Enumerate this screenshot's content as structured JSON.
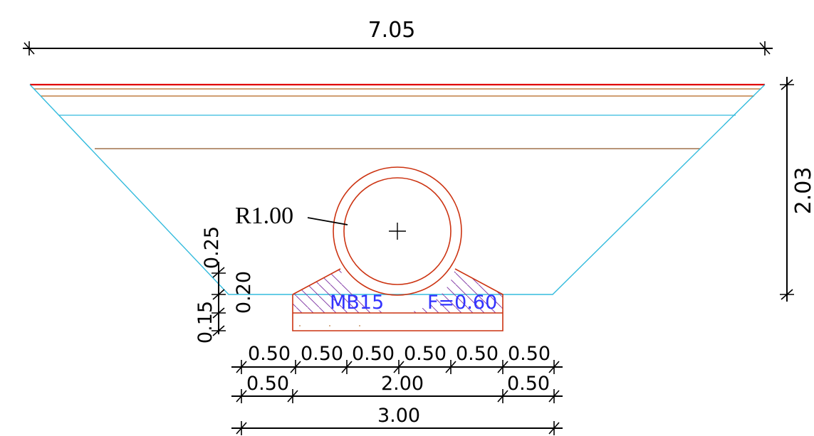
{
  "dimensions": {
    "top_width": "7.05",
    "total_height": "2.03",
    "radius": "R1.00",
    "left_025": "0.25",
    "left_020": "0.20",
    "left_015": "0.15",
    "row1": [
      "0.50",
      "0.50",
      "0.50",
      "0.50",
      "0.50",
      "0.50"
    ],
    "row2": [
      "0.50",
      "2.00",
      "0.50"
    ],
    "row3": "3.00"
  },
  "base_label": {
    "material": "MB15",
    "factor": "F=0.60"
  },
  "colors": {
    "red": "#e00000",
    "brown": "#b5651d",
    "cyan": "#33bbdd",
    "pipe": "#cc3311",
    "blue_text": "#3333ff",
    "hatch": "#8844aa"
  }
}
